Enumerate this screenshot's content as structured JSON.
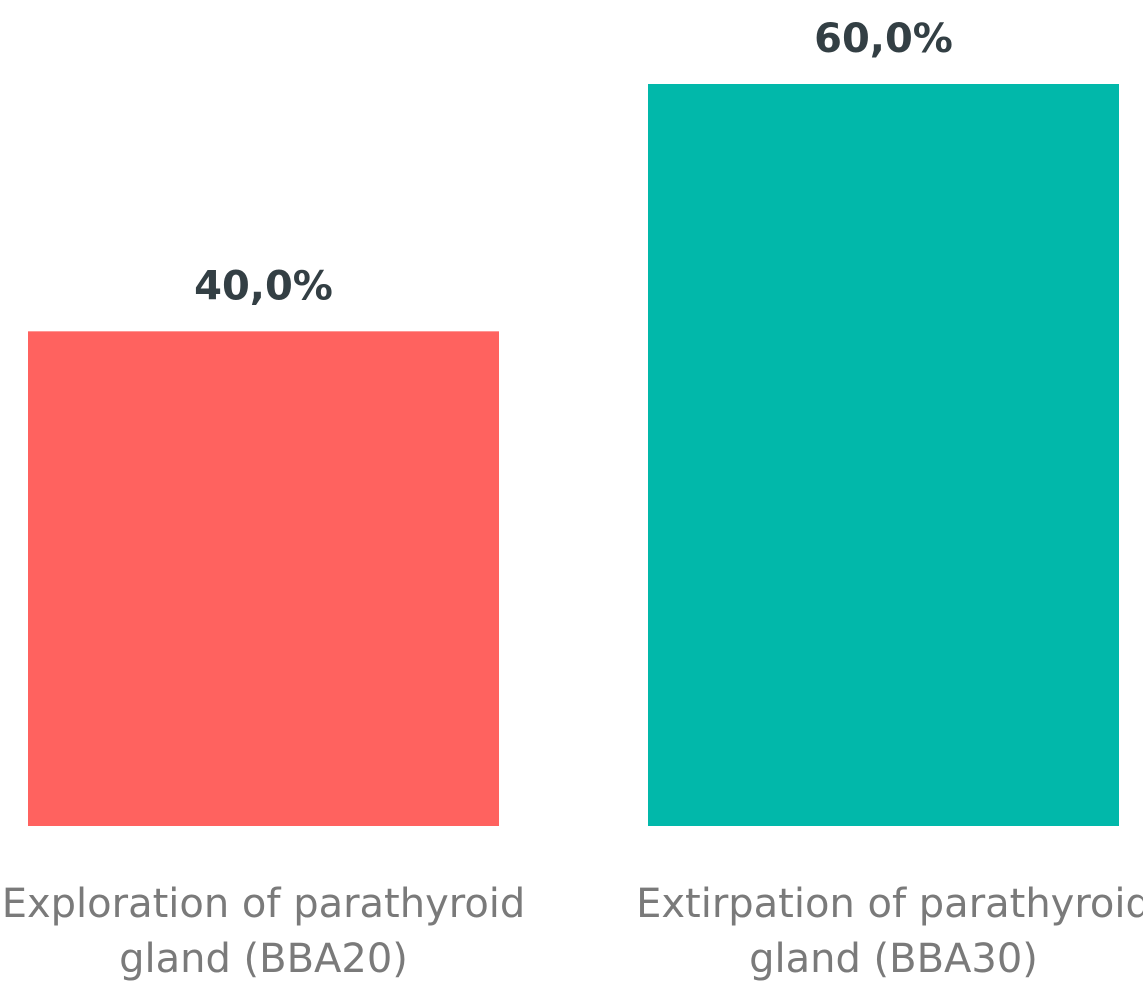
{
  "chart_data": {
    "type": "bar",
    "categories": [
      [
        "Exploration of parathyroid",
        "gland (BBA20)"
      ],
      [
        "Extirpation of parathyroid",
        "gland (BBA30)"
      ]
    ],
    "values": [
      40.0,
      60.0
    ],
    "value_labels": [
      "40,0%",
      "60,0%"
    ],
    "colors": [
      "#ff625f",
      "#01b8aa"
    ],
    "title": "",
    "xlabel": "",
    "ylabel": "",
    "ylim": [
      0,
      60
    ],
    "grid": false,
    "legend": "none"
  }
}
